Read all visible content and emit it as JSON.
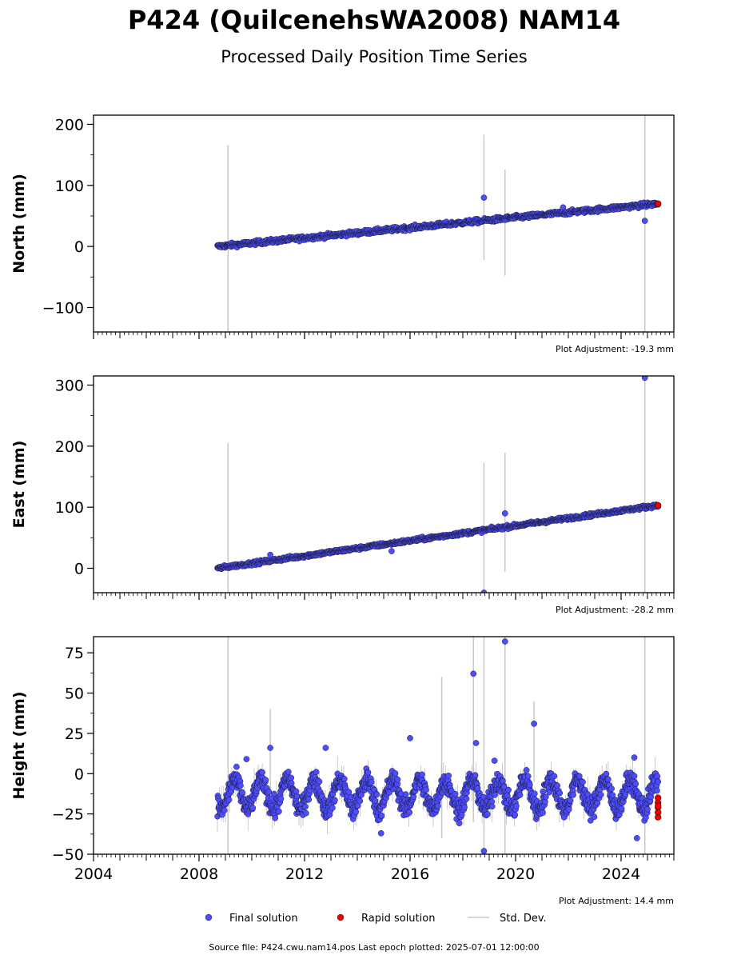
{
  "title": "P424 (QuilcenehsWA2008) NAM14",
  "subtitle": "Processed Daily Position Time Series",
  "legend": {
    "final": "Final solution",
    "rapid": "Rapid solution",
    "std": "Std. Dev."
  },
  "footer": "Source file: P424.cwu.nam14.pos  Last epoch plotted: 2025-07-01 12:00:00",
  "colors": {
    "final": "#4d4dff",
    "rapid": "#ee0000",
    "std": "#c8c8c8"
  },
  "chart_data": [
    {
      "type": "scatter",
      "ylabel": "North (mm)",
      "adjustment": "Plot Adjustment: -19.3 mm",
      "xlim": [
        2004.0,
        2026.0
      ],
      "ylim": [
        -140,
        215
      ],
      "yticks": [
        -100,
        0,
        100,
        200
      ],
      "ytick_labels": [
        "−100",
        "0",
        "100",
        "200"
      ],
      "xticks": [
        2004,
        2008,
        2012,
        2016,
        2020,
        2024
      ],
      "xtick_labels": [],
      "trend": {
        "start": [
          2008.7,
          0
        ],
        "end": [
          2025.4,
          70
        ],
        "noise": 2.5
      },
      "outliers": [
        [
          2018.8,
          80
        ],
        [
          2021.8,
          64
        ],
        [
          2024.9,
          42
        ]
      ],
      "rapid": [
        [
          2025.4,
          70
        ]
      ],
      "std_bars": [
        [
          2009.1,
          -140,
          166
        ],
        [
          2018.8,
          -22,
          183
        ],
        [
          2019.6,
          -48,
          126
        ],
        [
          2024.9,
          -140,
          215
        ]
      ],
      "grid": false
    },
    {
      "type": "scatter",
      "ylabel": "East (mm)",
      "adjustment": "Plot Adjustment: -28.2 mm",
      "xlim": [
        2004.0,
        2026.0
      ],
      "ylim": [
        -40,
        315
      ],
      "yticks": [
        0,
        100,
        200,
        300
      ],
      "ytick_labels": [
        "0",
        "100",
        "200",
        "300"
      ],
      "xticks": [
        2004,
        2008,
        2012,
        2016,
        2020,
        2024
      ],
      "xtick_labels": [],
      "trend": {
        "start": [
          2008.7,
          0
        ],
        "end": [
          2025.4,
          103
        ],
        "noise": 2.0
      },
      "outliers": [
        [
          2010.7,
          22
        ],
        [
          2015.3,
          28
        ],
        [
          2018.8,
          -40
        ],
        [
          2019.6,
          90
        ],
        [
          2024.9,
          312
        ]
      ],
      "rapid": [
        [
          2025.4,
          103
        ]
      ],
      "std_bars": [
        [
          2009.1,
          -40,
          205
        ],
        [
          2018.8,
          -40,
          173
        ],
        [
          2019.6,
          -6,
          189
        ],
        [
          2024.9,
          -40,
          315
        ]
      ],
      "grid": false
    },
    {
      "type": "scatter",
      "ylabel": "Height (mm)",
      "adjustment": "Plot Adjustment: 14.4 mm",
      "xlim": [
        2004.0,
        2026.0
      ],
      "ylim": [
        -50,
        85
      ],
      "yticks": [
        -50,
        -25,
        0,
        25,
        50,
        75
      ],
      "ytick_labels": [
        "−50",
        "−25",
        "0",
        "25",
        "50",
        "75"
      ],
      "xticks": [
        2004,
        2008,
        2012,
        2016,
        2020,
        2024
      ],
      "xtick_labels": [
        "2004",
        "2008",
        "2012",
        "2016",
        "2020",
        "2024"
      ],
      "seasonal": {
        "start": 2008.7,
        "end": 2025.4,
        "mean": -13,
        "amp": 9,
        "noise": 6
      },
      "outliers": [
        [
          2009.8,
          9
        ],
        [
          2010.7,
          16
        ],
        [
          2012.8,
          16
        ],
        [
          2014.9,
          -37
        ],
        [
          2016.0,
          22
        ],
        [
          2018.4,
          62
        ],
        [
          2018.5,
          19
        ],
        [
          2018.8,
          -48
        ],
        [
          2019.2,
          8
        ],
        [
          2019.6,
          82
        ],
        [
          2020.7,
          31
        ],
        [
          2024.6,
          -40
        ],
        [
          2024.5,
          10
        ]
      ],
      "rapid": [
        [
          2025.4,
          -15
        ],
        [
          2025.4,
          -18
        ],
        [
          2025.4,
          -21
        ],
        [
          2025.4,
          -24
        ],
        [
          2025.4,
          -27
        ],
        [
          2025.4,
          -20
        ]
      ],
      "std_bars": [
        [
          2009.1,
          -50,
          85
        ],
        [
          2010.7,
          -10,
          40
        ],
        [
          2017.2,
          -40,
          60
        ],
        [
          2018.4,
          -30,
          85
        ],
        [
          2018.8,
          -50,
          85
        ],
        [
          2019.6,
          -50,
          85
        ],
        [
          2020.7,
          -5,
          45
        ],
        [
          2024.9,
          -50,
          85
        ]
      ],
      "grid": false
    }
  ]
}
